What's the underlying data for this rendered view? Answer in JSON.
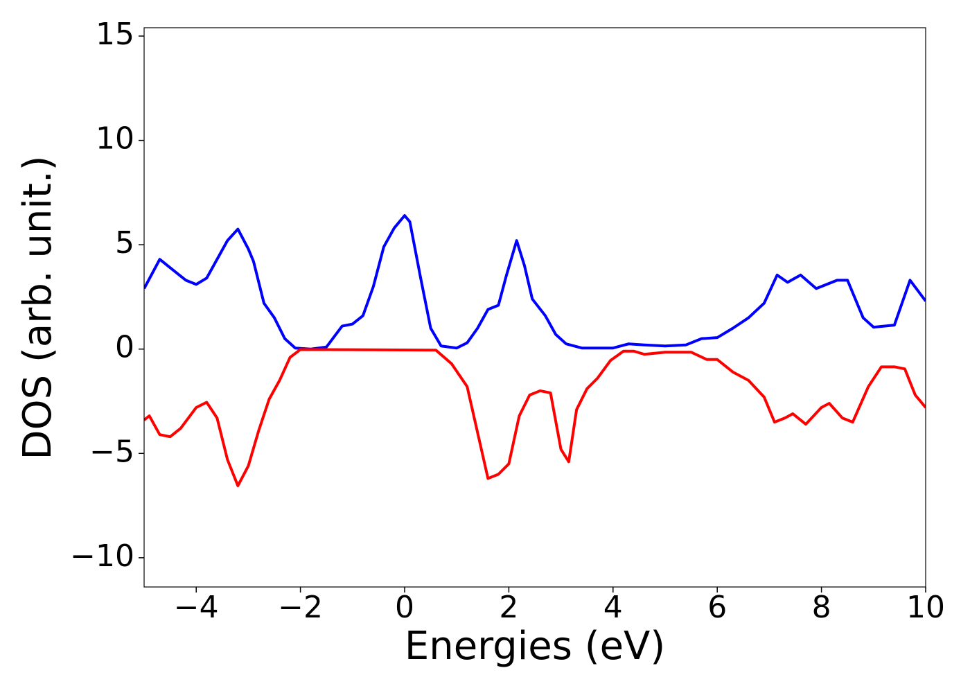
{
  "chart_data": {
    "type": "line",
    "xlabel": "Energies (eV)",
    "ylabel": "DOS (arb. unit.)",
    "xlim": [
      -5,
      10
    ],
    "ylim": [
      -11.4,
      15.4
    ],
    "xticks": [
      {
        "value": -4,
        "label": "−4"
      },
      {
        "value": -2,
        "label": "−2"
      },
      0,
      2,
      4,
      6,
      8,
      10
    ],
    "yticks": [
      {
        "value": -10,
        "label": "−10"
      },
      {
        "value": -5,
        "label": "−5"
      },
      0,
      5,
      10,
      15
    ],
    "series": [
      {
        "color": "#0000ff",
        "x": [
          -5,
          -4.7,
          -4.5,
          -4.2,
          -4.0,
          -3.8,
          -3.6,
          -3.4,
          -3.2,
          -3.0,
          -2.9,
          -2.7,
          -2.5,
          -2.3,
          -2.1,
          -1.8,
          -1.5,
          -1.2,
          -1.0,
          -0.8,
          -0.6,
          -0.4,
          -0.2,
          0,
          0.1,
          0.3,
          0.5,
          0.7,
          1.0,
          1.2,
          1.4,
          1.6,
          1.8,
          1.95,
          2.15,
          2.3,
          2.45,
          2.7,
          2.9,
          3.1,
          3.4,
          4.0,
          4.3,
          4.6,
          5.0,
          5.4,
          5.7,
          6.0,
          6.3,
          6.6,
          6.9,
          7.15,
          7.35,
          7.6,
          7.9,
          8.3,
          8.5,
          8.8,
          9.0,
          9.2,
          9.4,
          9.7,
          10
        ],
        "values": [
          2.9,
          4.3,
          3.9,
          3.3,
          3.1,
          3.4,
          4.3,
          5.2,
          5.75,
          4.8,
          4.2,
          2.2,
          1.5,
          0.5,
          0.05,
          0,
          0.1,
          1.1,
          1.2,
          1.6,
          3.0,
          4.9,
          5.8,
          6.4,
          6.1,
          3.5,
          1.0,
          0.15,
          0.05,
          0.3,
          1.0,
          1.9,
          2.1,
          3.5,
          5.2,
          4.0,
          2.4,
          1.6,
          0.7,
          0.25,
          0.05,
          0.05,
          0.25,
          0.2,
          0.15,
          0.2,
          0.5,
          0.55,
          1.0,
          1.5,
          2.2,
          3.55,
          3.2,
          3.55,
          2.9,
          3.3,
          3.3,
          1.5,
          1.05,
          1.1,
          1.15,
          3.3,
          2.3
        ]
      },
      {
        "color": "#ff0000",
        "x": [
          -5,
          -4.9,
          -4.7,
          -4.5,
          -4.3,
          -4.0,
          -3.8,
          -3.6,
          -3.4,
          -3.2,
          -3.0,
          -2.8,
          -2.6,
          -2.4,
          -2.2,
          -2.0,
          0.6,
          0.9,
          1.2,
          1.4,
          1.6,
          1.8,
          2.0,
          2.2,
          2.4,
          2.6,
          2.8,
          3.0,
          3.15,
          3.3,
          3.5,
          3.7,
          3.95,
          4.2,
          4.4,
          4.6,
          5.0,
          5.5,
          5.8,
          6.0,
          6.3,
          6.6,
          6.9,
          7.1,
          7.3,
          7.45,
          7.7,
          8.0,
          8.15,
          8.4,
          8.6,
          8.9,
          9.15,
          9.4,
          9.6,
          9.8,
          10
        ],
        "values": [
          -3.4,
          -3.2,
          -4.1,
          -4.2,
          -3.8,
          -2.8,
          -2.55,
          -3.3,
          -5.3,
          -6.55,
          -5.6,
          -3.9,
          -2.4,
          -1.5,
          -0.4,
          -0.02,
          -0.05,
          -0.7,
          -1.8,
          -4.0,
          -6.2,
          -6.0,
          -5.5,
          -3.2,
          -2.2,
          -2.0,
          -2.1,
          -4.8,
          -5.4,
          -2.9,
          -1.9,
          -1.4,
          -0.55,
          -0.1,
          -0.1,
          -0.25,
          -0.15,
          -0.15,
          -0.5,
          -0.5,
          -1.1,
          -1.5,
          -2.3,
          -3.5,
          -3.3,
          -3.1,
          -3.6,
          -2.8,
          -2.6,
          -3.3,
          -3.5,
          -1.8,
          -0.85,
          -0.85,
          -0.95,
          -2.2,
          -2.8
        ]
      }
    ]
  }
}
